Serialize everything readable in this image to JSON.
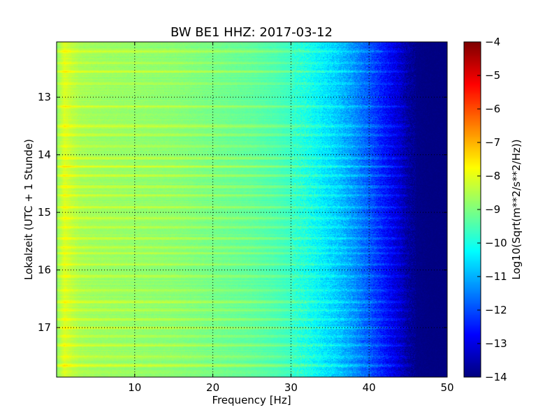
{
  "chart_data": {
    "type": "heatmap",
    "title": "BW BE1 HHZ: 2017-03-12",
    "xlabel": "Frequency [Hz]",
    "ylabel": "Lokalzeit (UTC + 1 Stunde)",
    "xlim": [
      0,
      50
    ],
    "ylim": [
      17.86,
      12.04
    ],
    "y_inverted": true,
    "xticks": [
      10,
      20,
      30,
      40,
      50
    ],
    "yticks": [
      13,
      14,
      15,
      16,
      17
    ],
    "grid": true,
    "colormap": "jet",
    "colorbar": {
      "label": "Log10(Sqrt(m**2/s**2/Hz))",
      "range": [
        -14,
        -4
      ],
      "ticks": [
        -4,
        -5,
        -6,
        -7,
        -8,
        -9,
        -10,
        -11,
        -12,
        -13,
        -14
      ]
    },
    "frequency_profile": {
      "x": [
        0,
        1,
        2,
        3,
        5,
        10,
        15,
        20,
        25,
        28,
        30,
        32,
        34,
        36,
        38,
        40,
        42,
        44,
        45,
        46,
        48,
        50
      ],
      "z": [
        -8.9,
        -8.1,
        -8.4,
        -8.6,
        -8.7,
        -8.8,
        -8.9,
        -9.1,
        -9.3,
        -9.5,
        -9.7,
        -10.0,
        -10.4,
        -10.8,
        -11.3,
        -11.9,
        -12.6,
        -13.3,
        -13.7,
        -13.9,
        -14.0,
        -14.0
      ]
    },
    "bright_rows_hours": [
      12.2,
      12.4,
      12.55,
      12.75,
      13.15,
      13.5,
      13.65,
      13.85,
      14.05,
      14.2,
      14.35,
      14.55,
      14.7,
      14.9,
      15.1,
      15.25,
      15.45,
      15.6,
      15.7,
      15.9,
      16.1,
      16.35,
      16.55,
      16.7,
      16.85,
      17.0,
      17.15,
      17.3,
      17.5,
      17.65
    ],
    "noise_seed": 7
  }
}
